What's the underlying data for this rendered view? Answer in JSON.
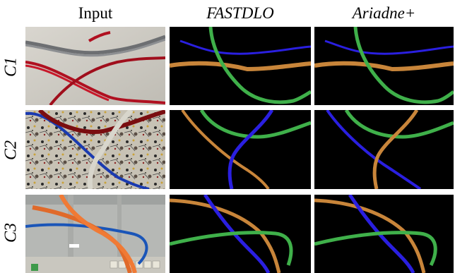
{
  "columns": [
    {
      "label": "Input",
      "italic": false
    },
    {
      "label": "FASTDLO",
      "italic": true
    },
    {
      "label": "Ariadne+",
      "italic": true
    }
  ],
  "rows": [
    {
      "label": "C1"
    },
    {
      "label": "C2"
    },
    {
      "label": "C3"
    }
  ],
  "colors": {
    "blue_cable": "#2a1fe0",
    "orange_cable": "#c8853a",
    "green_cable": "#3fb04a",
    "background": "#000000"
  }
}
